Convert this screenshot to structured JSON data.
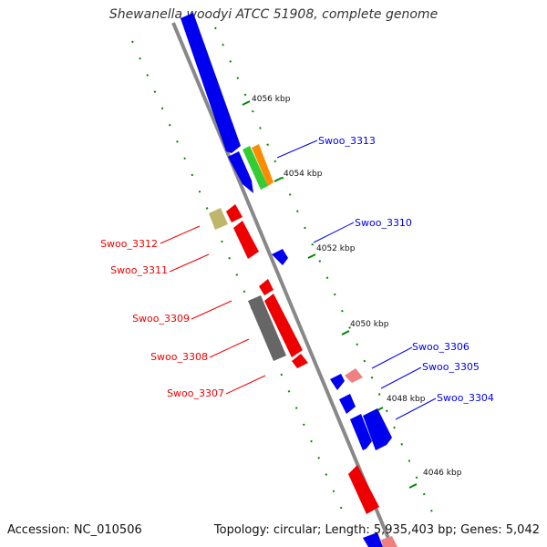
{
  "title": "Shewanella woodyi ATCC 51908, complete genome",
  "footer": {
    "accession": "Accession: NC_010506",
    "summary": "Topology: circular; Length: 5,935,403 bp; Genes: 5,042"
  },
  "colors": {
    "backbone": "#888888",
    "forward_gene": "#0000ee",
    "reverse_gene": "#ee0000",
    "light_red": "#f08080",
    "khaki": "#bdb76b",
    "gray": "#666666",
    "green": "#33cc33",
    "orange": "#ff8c00",
    "tick": "#008800"
  },
  "tick_labels": [
    {
      "label": "4056 kbp"
    },
    {
      "label": "4054 kbp"
    },
    {
      "label": "4052 kbp"
    },
    {
      "label": "4050 kbp"
    },
    {
      "label": "4048 kbp"
    },
    {
      "label": "4046 kbp"
    }
  ],
  "gene_labels": [
    {
      "label": "Swoo_3313",
      "strand": "forward"
    },
    {
      "label": "Swoo_3310",
      "strand": "forward"
    },
    {
      "label": "Swoo_3312",
      "strand": "reverse"
    },
    {
      "label": "Swoo_3311",
      "strand": "reverse"
    },
    {
      "label": "Swoo_3309",
      "strand": "reverse"
    },
    {
      "label": "Swoo_3308",
      "strand": "reverse"
    },
    {
      "label": "Swoo_3307",
      "strand": "reverse"
    },
    {
      "label": "Swoo_3306",
      "strand": "forward"
    },
    {
      "label": "Swoo_3305",
      "strand": "forward"
    },
    {
      "label": "Swoo_3304",
      "strand": "forward"
    }
  ]
}
